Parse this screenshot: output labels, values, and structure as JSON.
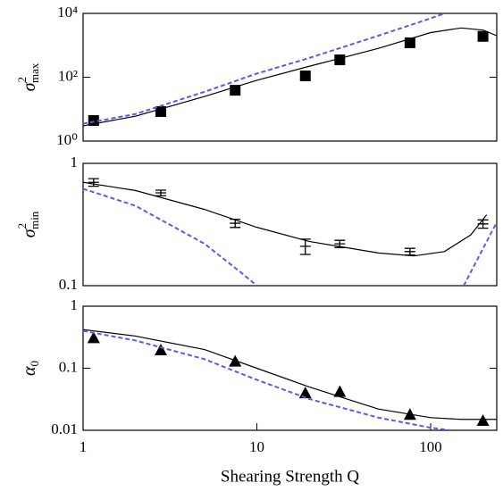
{
  "chart_data": [
    {
      "type": "line",
      "ylabel": {
        "symbol": "σ",
        "sup": "2",
        "sub": "max"
      },
      "xlim": [
        1,
        240
      ],
      "ylim": [
        1,
        10000
      ],
      "log_x": true,
      "log_y": true,
      "yticks": [
        {
          "value": 1,
          "label": "10⁰"
        },
        {
          "value": 100,
          "label": "10²"
        },
        {
          "value": 10000,
          "label": "10⁴"
        }
      ],
      "series": [
        {
          "marker": "square",
          "color": "#000000",
          "x": [
            1.15,
            2.8,
            7.5,
            19,
            30,
            76,
            200
          ],
          "values": [
            4.4,
            8.4,
            39,
            110,
            350,
            1200,
            1900
          ]
        },
        {
          "marker": "none",
          "color": "#000000",
          "x": [
            1,
            2,
            5,
            10,
            20,
            50,
            100,
            150,
            200,
            240
          ],
          "values": [
            3,
            6,
            25,
            80,
            220,
            800,
            2500,
            3500,
            3000,
            2000
          ]
        },
        {
          "marker": "none",
          "dash": true,
          "color": "#5a5ae8",
          "x": [
            1,
            2,
            5,
            10,
            20,
            50,
            100,
            120
          ],
          "values": [
            3.5,
            7,
            35,
            130,
            400,
            2000,
            7000,
            10000
          ]
        }
      ]
    },
    {
      "type": "line",
      "ylabel": {
        "symbol": "σ",
        "sup": "2",
        "sub": "min"
      },
      "xlim": [
        1,
        240
      ],
      "ylim": [
        0.1,
        1
      ],
      "log_x": true,
      "log_y": true,
      "yticks": [
        {
          "value": 0.1,
          "label": "0.1"
        },
        1
      ],
      "series": [
        {
          "marker": "errorbar",
          "color": "#000000",
          "x": [
            1.15,
            2.8,
            7.5,
            19,
            30,
            76,
            200
          ],
          "values": [
            0.7,
            0.574,
            0.324,
            0.21,
            0.22,
            0.19,
            0.32
          ],
          "errors": [
            0.05,
            0.03,
            0.025,
            0.03,
            0.015,
            0.012,
            0.025
          ]
        },
        {
          "marker": "none",
          "color": "#000000",
          "x": [
            1,
            2,
            5,
            10,
            20,
            50,
            80,
            120,
            170,
            210
          ],
          "values": [
            0.7,
            0.6,
            0.42,
            0.3,
            0.23,
            0.185,
            0.175,
            0.19,
            0.26,
            0.38
          ]
        },
        {
          "marker": "none",
          "dash": true,
          "color": "#5a5ae8",
          "x": [
            1,
            2,
            5,
            8,
            10,
            100,
            155,
            240
          ],
          "values": [
            0.62,
            0.45,
            0.22,
            0.13,
            0.1,
            null,
            0.1,
            0.33
          ]
        }
      ]
    },
    {
      "type": "line",
      "ylabel": {
        "symbol": "α",
        "sub": "0"
      },
      "xlabel": "Shearing Strength Q",
      "xlim": [
        1,
        240
      ],
      "ylim": [
        0.01,
        1
      ],
      "log_x": true,
      "log_y": true,
      "xticks": [
        1,
        10,
        100
      ],
      "yticks": [
        {
          "value": 0.01,
          "label": "0.01"
        },
        {
          "value": 0.1,
          "label": "0.1"
        },
        1
      ],
      "series": [
        {
          "marker": "triangle",
          "color": "#000000",
          "x": [
            1.15,
            2.8,
            7.5,
            19,
            30,
            76,
            200
          ],
          "values": [
            0.31,
            0.197,
            0.13,
            0.04,
            0.042,
            0.018,
            0.0144
          ]
        },
        {
          "marker": "none",
          "color": "#000000",
          "x": [
            1,
            2,
            5,
            10,
            20,
            50,
            100,
            150,
            240
          ],
          "values": [
            0.42,
            0.33,
            0.2,
            0.1,
            0.05,
            0.022,
            0.016,
            0.015,
            0.015
          ]
        },
        {
          "marker": "none",
          "dash": true,
          "color": "#5a5ae8",
          "x": [
            1,
            2,
            5,
            10,
            20,
            50,
            100,
            130
          ],
          "values": [
            0.4,
            0.28,
            0.14,
            0.065,
            0.032,
            0.016,
            0.011,
            0.01
          ]
        }
      ]
    }
  ]
}
